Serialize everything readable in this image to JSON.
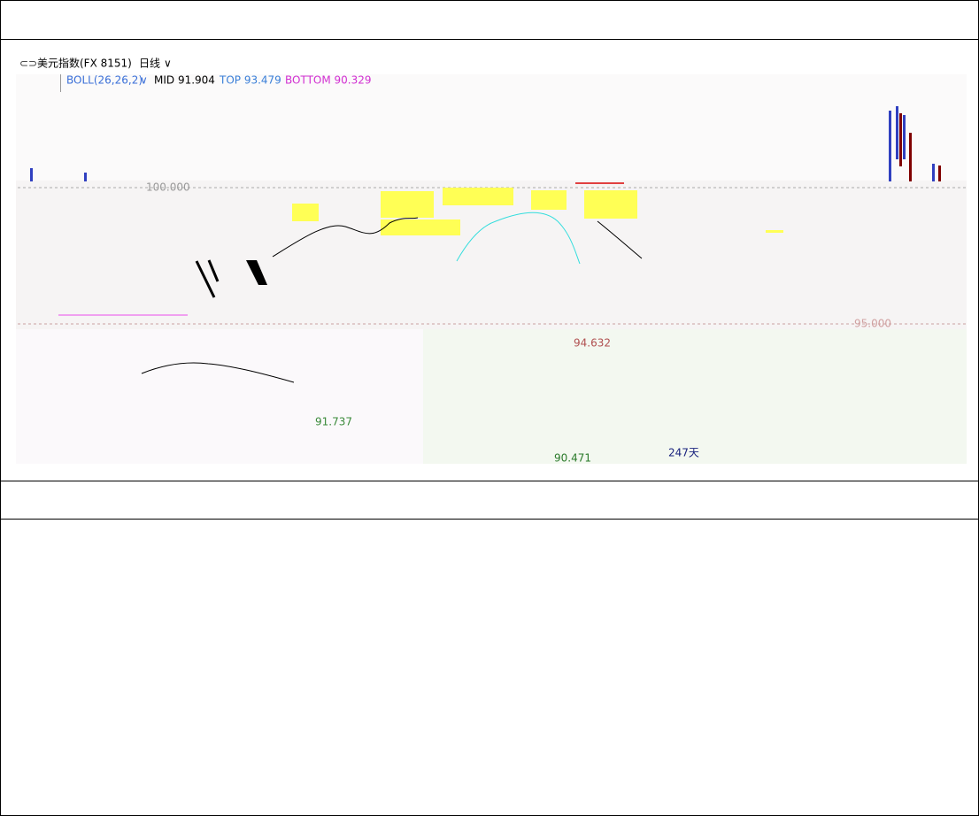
{
  "chart_window": {
    "symbol": "美元指数(FX 8151)",
    "period": "日线",
    "indicator": "BOLL(26,26,2)",
    "mid": "MID 91.904",
    "top": "TOP 93.479",
    "bottom": "BOTTOM 90.329",
    "price_levels": [
      "100.000",
      "95.000"
    ],
    "annotations": [
      "94.632",
      "91.737",
      "90.471",
      "247天"
    ]
  }
}
